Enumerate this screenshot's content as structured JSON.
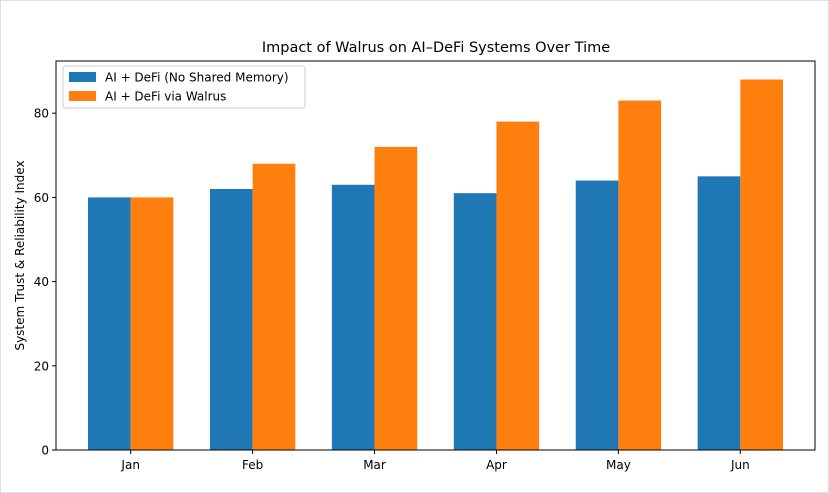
{
  "chart_data": {
    "type": "bar",
    "title": "Impact of Walrus on AI–DeFi Systems Over Time",
    "xlabel": "",
    "ylabel": "System Trust & Reliability Index",
    "categories": [
      "Jan",
      "Feb",
      "Mar",
      "Apr",
      "May",
      "Jun"
    ],
    "series": [
      {
        "name": "AI + DeFi (No Shared Memory)",
        "values": [
          60,
          62,
          63,
          61,
          64,
          65
        ],
        "color": "#1f77b4"
      },
      {
        "name": "AI + DeFi via Walrus",
        "values": [
          60,
          68,
          72,
          78,
          83,
          88
        ],
        "color": "#ff7f0e"
      }
    ],
    "ylim": [
      0,
      92.4
    ],
    "yticks": [
      0,
      20,
      40,
      60,
      80
    ],
    "grid": false,
    "legend_position": "top-left"
  }
}
